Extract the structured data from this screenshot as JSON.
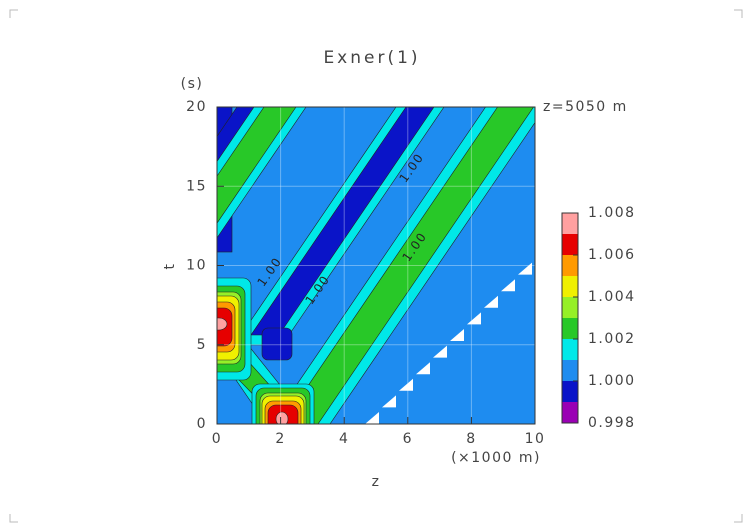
{
  "chart_data": {
    "type": "contour",
    "title": "Exner(1)",
    "xlabel": "z",
    "ylabel": "t",
    "xunit": "(×1000 m)",
    "yunit": "(s)",
    "annotation": "z=5050 m",
    "xlim": [
      0,
      10
    ],
    "ylim": [
      0,
      20
    ],
    "xticks": [
      0,
      2,
      4,
      6,
      8,
      10
    ],
    "yticks": [
      0,
      5,
      10,
      15,
      20
    ],
    "grid": true,
    "contour_labels": [
      "1.00",
      "1.00",
      "1.00",
      "1.00"
    ],
    "colorbar": {
      "levels": [
        0.998,
        0.999,
        1.0,
        1.001,
        1.002,
        1.003,
        1.004,
        1.005,
        1.006,
        1.007,
        1.008
      ],
      "colors": [
        "#9a00b4",
        "#0a14c8",
        "#1e8cf0",
        "#00e8e8",
        "#28c828",
        "#96f028",
        "#f0f000",
        "#ff9a00",
        "#e60000",
        "#ffa0a0"
      ],
      "ticks": [
        0.998,
        {
          "value": 1.0,
          "label": "1.000"
        },
        1.002,
        1.004,
        1.006,
        1.008
      ]
    }
  }
}
